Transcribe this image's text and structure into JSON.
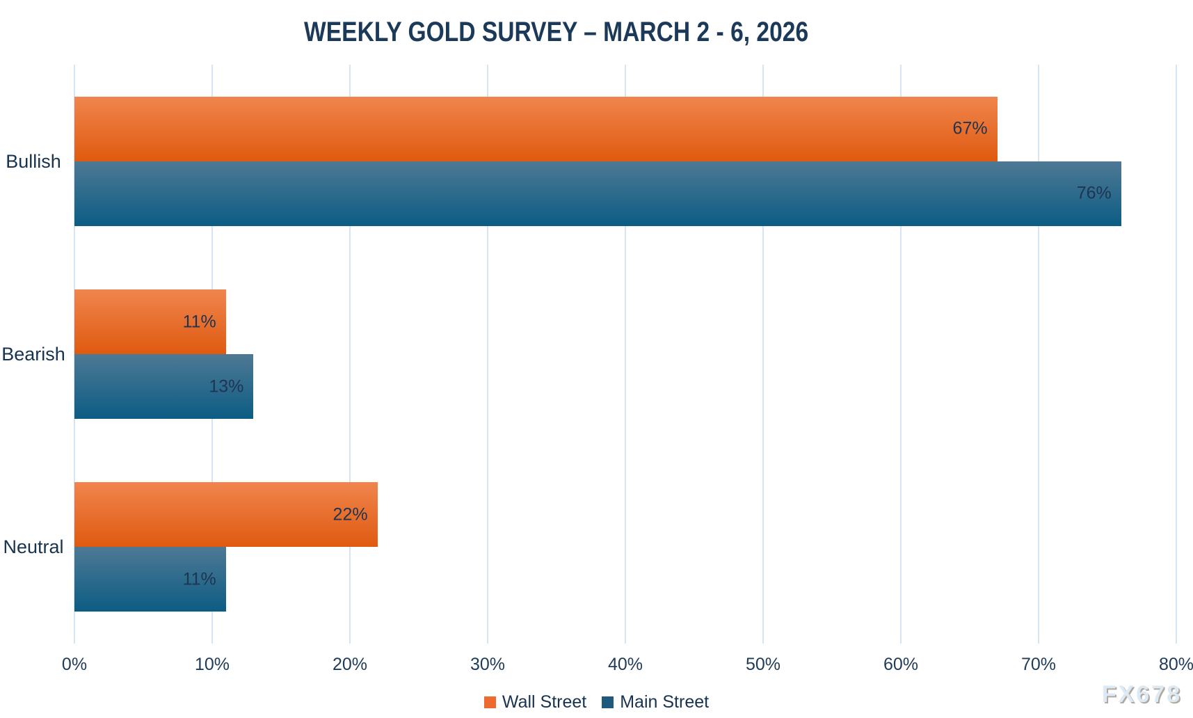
{
  "chart_data": {
    "type": "bar",
    "orientation": "horizontal",
    "title": "WEEKLY GOLD SURVEY – MARCH 2 - 6, 2026",
    "categories": [
      "Bullish",
      "Bearish",
      "Neutral"
    ],
    "series": [
      {
        "name": "Wall Street",
        "values": [
          67,
          11,
          22
        ],
        "color_top": "#f0854e",
        "color_bottom": "#df5a0f",
        "legend_color": "#ed6b2e"
      },
      {
        "name": "Main Street",
        "values": [
          76,
          13,
          11
        ],
        "color_top": "#4e7994",
        "color_bottom": "#0c5c84",
        "legend_color": "#1f5a7e"
      }
    ],
    "value_suffix": "%",
    "xlim": [
      0,
      80
    ],
    "x_ticks": [
      "0%",
      "10%",
      "20%",
      "30%",
      "40%",
      "50%",
      "60%",
      "70%",
      "80%"
    ],
    "grid": "vertical",
    "legend_position": "bottom",
    "data_labels": "inside-end"
  },
  "watermark": {
    "text": "FX678"
  },
  "colors": {
    "title": "#1b3a5a",
    "axis_label": "#1f3b57",
    "data_label": "#1f3450",
    "grid": "#d4e4f2",
    "background": "#ffffff"
  }
}
